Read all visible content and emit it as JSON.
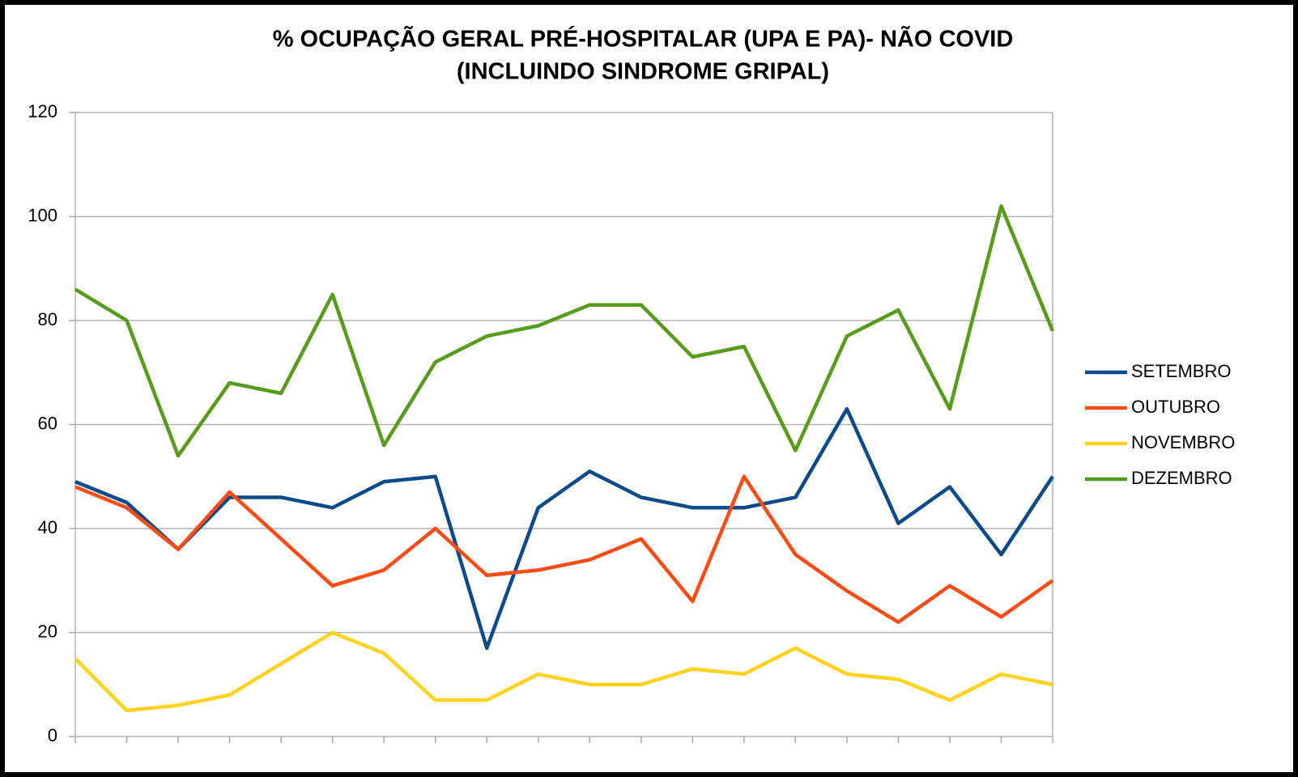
{
  "chart_data": {
    "type": "line",
    "title": [
      "% OCUPAÇÃO GERAL PRÉ-HOSPITALAR (UPA E PA)- NÃO COVID",
      "(INCLUINDO SINDROME GRIPAL)"
    ],
    "categories": [
      null,
      null,
      null,
      null,
      null,
      null,
      null,
      null,
      null,
      null,
      null,
      null,
      null,
      null,
      null,
      null,
      null,
      null,
      null,
      null
    ],
    "series": [
      {
        "name": "SETEMBRO",
        "color": "#0b4a8b",
        "values": [
          49,
          45,
          36,
          46,
          46,
          44,
          49,
          50,
          17,
          44,
          51,
          46,
          44,
          44,
          46,
          63,
          41,
          48,
          35,
          50
        ]
      },
      {
        "name": "OUTUBRO",
        "color": "#ff4b14",
        "values": [
          48,
          44,
          36,
          47,
          38,
          29,
          32,
          40,
          31,
          32,
          34,
          38,
          26,
          50,
          35,
          28,
          22,
          29,
          23,
          30
        ]
      },
      {
        "name": "NOVEMBRO",
        "color": "#ffd320",
        "values": [
          15,
          5,
          6,
          8,
          14,
          20,
          16,
          7,
          7,
          12,
          10,
          10,
          13,
          12,
          17,
          12,
          11,
          7,
          12,
          10
        ]
      },
      {
        "name": "DEZEMBRO",
        "color": "#579d1c",
        "values": [
          86,
          80,
          54,
          68,
          66,
          85,
          56,
          72,
          77,
          79,
          83,
          83,
          73,
          75,
          55,
          77,
          82,
          63,
          102,
          78
        ]
      }
    ],
    "ylim": [
      0,
      120
    ],
    "yticks": [
      0,
      20,
      40,
      60,
      80,
      100,
      120
    ],
    "grid": true,
    "legend": "right"
  }
}
